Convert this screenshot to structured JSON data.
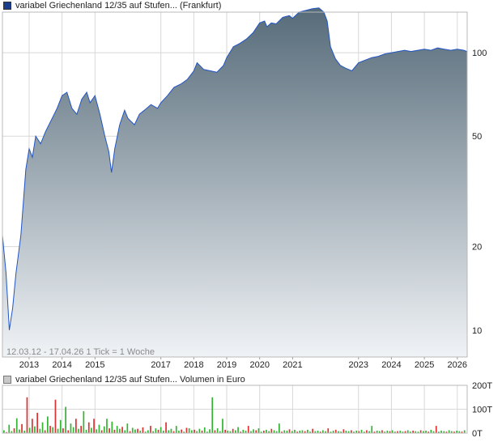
{
  "header": {
    "series_label": "variabel Griechenland 12/35 auf Stufen... (Frankfurt)"
  },
  "volume_header": {
    "label": "variabel Griechenland 12/35 auf Stufen... Volumen in Euro"
  },
  "info_text": "12.03.12 - 17.04.26   1 Tick = 1 Woche",
  "colors": {
    "line": "#2255c4",
    "area_top": "#566b79",
    "area_bottom": "#f0f3f6",
    "volume_up": "#33b233",
    "volume_down": "#e03030",
    "grid": "#d8d8d8"
  },
  "chart_data": [
    {
      "type": "area",
      "scale": "log",
      "ylim": [
        8,
        140
      ],
      "xlim": [
        2012.19,
        2026.3
      ],
      "y_ticks": [
        10,
        20,
        50,
        100
      ],
      "y_tick_labels": [
        "10",
        "20",
        "50",
        "100"
      ],
      "x_ticks": [
        2013,
        2014,
        2015,
        2017,
        2018,
        2019,
        2020,
        2021,
        2023,
        2024,
        2025,
        2026
      ],
      "x_tick_labels": [
        "2013",
        "2014",
        "2015",
        "2017",
        "2018",
        "2019",
        "2020",
        "2021",
        "2023",
        "2024",
        "2025",
        "2026"
      ],
      "x": [
        2012.19,
        2012.3,
        2012.4,
        2012.5,
        2012.6,
        2012.75,
        2012.9,
        2013.0,
        2013.1,
        2013.2,
        2013.35,
        2013.5,
        2013.7,
        2013.85,
        2014.0,
        2014.15,
        2014.3,
        2014.45,
        2014.6,
        2014.75,
        2014.85,
        2015.0,
        2015.15,
        2015.3,
        2015.42,
        2015.5,
        2015.6,
        2015.75,
        2015.9,
        2016.0,
        2016.2,
        2016.35,
        2016.5,
        2016.7,
        2016.9,
        2017.0,
        2017.2,
        2017.4,
        2017.6,
        2017.8,
        2018.0,
        2018.1,
        2018.3,
        2018.5,
        2018.7,
        2018.9,
        2019.0,
        2019.2,
        2019.4,
        2019.6,
        2019.8,
        2020.0,
        2020.15,
        2020.22,
        2020.35,
        2020.5,
        2020.7,
        2020.9,
        2021.0,
        2021.2,
        2021.4,
        2021.6,
        2021.8,
        2021.95,
        2022.05,
        2022.15,
        2022.3,
        2022.45,
        2022.6,
        2022.8,
        2023.0,
        2023.2,
        2023.4,
        2023.6,
        2023.8,
        2024.0,
        2024.2,
        2024.4,
        2024.6,
        2024.8,
        2025.0,
        2025.2,
        2025.4,
        2025.6,
        2025.8,
        2026.0,
        2026.2,
        2026.29
      ],
      "values": [
        22,
        16,
        10,
        12,
        16,
        22,
        38,
        45,
        42,
        50,
        47,
        52,
        58,
        63,
        70,
        72,
        63,
        60,
        68,
        72,
        66,
        70,
        60,
        50,
        44,
        37,
        45,
        55,
        62,
        58,
        55,
        60,
        62,
        65,
        63,
        66,
        70,
        75,
        77,
        80,
        86,
        92,
        87,
        86,
        85,
        90,
        96,
        105,
        108,
        112,
        118,
        128,
        130,
        124,
        128,
        127,
        134,
        136,
        133,
        140,
        142,
        144,
        145,
        140,
        130,
        105,
        95,
        90,
        88,
        86,
        92,
        94,
        96,
        97,
        99,
        100,
        101,
        102,
        101,
        102,
        103,
        102,
        104,
        103,
        102,
        103,
        102,
        101
      ]
    },
    {
      "type": "bar",
      "ylim": [
        0,
        200
      ],
      "y_ticks": [
        0,
        100,
        200
      ],
      "y_tick_labels": [
        "0T",
        "100T",
        "200T"
      ],
      "values": [
        12,
        4,
        35,
        8,
        20,
        62,
        15,
        38,
        10,
        150,
        22,
        60,
        28,
        85,
        18,
        45,
        12,
        70,
        30,
        25,
        140,
        18,
        55,
        20,
        110,
        12,
        40,
        25,
        60,
        18,
        30,
        92,
        14,
        45,
        22,
        60,
        16,
        35,
        12,
        28,
        60,
        20,
        48,
        14,
        30,
        18,
        26,
        12,
        40,
        8,
        22,
        15,
        18,
        10,
        24,
        6,
        12,
        30,
        8,
        20,
        14,
        25,
        10,
        45,
        12,
        18,
        8,
        30,
        10,
        15,
        6,
        22,
        20,
        12,
        14,
        8,
        18,
        10,
        24,
        6,
        16,
        150,
        12,
        20,
        8,
        60,
        14,
        10,
        8,
        18,
        12,
        25,
        6,
        14,
        10,
        30,
        8,
        16,
        12,
        20,
        6,
        10,
        14,
        8,
        18,
        12,
        8,
        40,
        6,
        12,
        10,
        16,
        8,
        14,
        6,
        10,
        12,
        8,
        14,
        6,
        18,
        8,
        10,
        6,
        12,
        8,
        20,
        6,
        10,
        14,
        8,
        6,
        16,
        10,
        8,
        12,
        6,
        10,
        8,
        14,
        6,
        12,
        8,
        30,
        6,
        10,
        8,
        12,
        6,
        10,
        8,
        12,
        6,
        8,
        10,
        6,
        8,
        12,
        6,
        10,
        8,
        6,
        12,
        8,
        10,
        6,
        14,
        8,
        30,
        6,
        10,
        8,
        6,
        12,
        8,
        6,
        10,
        8,
        6,
        12
      ],
      "signs": [
        1,
        -1,
        1,
        1,
        -1,
        1,
        1,
        -1,
        1,
        -1,
        1,
        -1,
        1,
        -1,
        1,
        1,
        -1,
        1,
        -1,
        1,
        -1,
        1,
        1,
        -1,
        1,
        -1,
        1,
        1,
        -1,
        1,
        -1,
        1,
        1,
        -1,
        1,
        -1,
        1,
        1,
        -1,
        1,
        1,
        -1,
        1,
        -1,
        1,
        1,
        -1,
        1,
        1,
        -1,
        1,
        1,
        -1,
        1,
        -1,
        1,
        1,
        -1,
        1,
        1,
        -1,
        1,
        1,
        -1,
        1,
        1,
        -1,
        1,
        1,
        -1,
        1,
        -1,
        1,
        1,
        -1,
        1,
        1,
        -1,
        1,
        1,
        1,
        1,
        -1,
        1,
        1,
        1,
        -1,
        1,
        1,
        -1,
        1,
        1,
        -1,
        1,
        1,
        -1,
        1,
        1,
        -1,
        1,
        1,
        -1,
        1,
        1,
        -1,
        1,
        1,
        1,
        -1,
        1,
        1,
        -1,
        1,
        1,
        -1,
        1,
        1,
        -1,
        1,
        1,
        -1,
        1,
        1,
        -1,
        1,
        1,
        -1,
        1,
        1,
        -1,
        1,
        1,
        -1,
        1,
        1,
        -1,
        1,
        1,
        -1,
        1,
        1,
        -1,
        1,
        1,
        -1,
        1,
        1,
        -1,
        1,
        1,
        -1,
        1,
        1,
        -1,
        1,
        1,
        -1,
        1,
        1,
        -1,
        1,
        1,
        -1,
        1,
        1,
        -1,
        1,
        1,
        -1,
        1,
        1,
        1,
        -1,
        1,
        1,
        -1,
        1,
        1,
        -1,
        1
      ]
    }
  ]
}
